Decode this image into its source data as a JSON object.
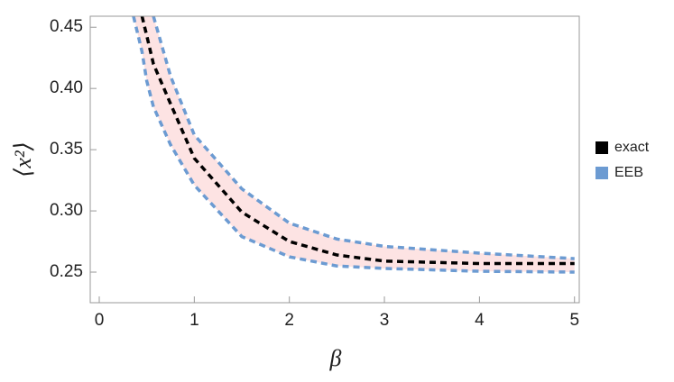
{
  "chart_data": {
    "type": "line",
    "x_label": "β",
    "y_label": "⟨x²⟩",
    "x": [
      0.36,
      0.45,
      0.5,
      0.57,
      0.75,
      1,
      1.5,
      2,
      2.5,
      3,
      4,
      5
    ],
    "series": [
      {
        "name": "exact",
        "color": "#000000",
        "values": [
          null,
          0.459,
          0.443,
          0.42,
          0.3875,
          0.343,
          0.299,
          0.275,
          0.264,
          0.259,
          0.257,
          0.257
        ]
      },
      {
        "name": "EEB",
        "color": "#6c9bd2",
        "band_color": "#fde3e3",
        "upper": [
          null,
          null,
          null,
          0.459,
          0.41,
          0.362,
          0.318,
          0.29,
          0.277,
          0.271,
          0.2655,
          0.261
        ],
        "lower": [
          0.459,
          0.43,
          0.406,
          0.385,
          0.354,
          0.321,
          0.279,
          0.2625,
          0.255,
          0.253,
          0.2507,
          0.25
        ]
      }
    ],
    "xlim": [
      -0.095,
      5.05
    ],
    "ylim": [
      0.225,
      0.459
    ],
    "xticks": [
      0,
      1,
      2,
      3,
      4,
      5
    ],
    "yticks": [
      0.25,
      {
        "value": 0.3,
        "label": "0.30"
      },
      0.35,
      {
        "value": 0.4,
        "label": "0.40"
      },
      0.45
    ],
    "legend": "right"
  }
}
